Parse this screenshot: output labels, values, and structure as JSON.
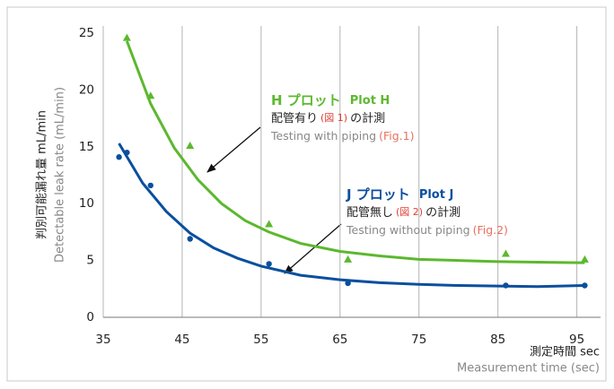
{
  "chart_data": {
    "type": "scatter",
    "y_label": "判別可能漏れ量 mL/min",
    "y_label_en": "Detectable leak rate (mL/min)",
    "x_label": "測定時間 sec",
    "x_label_en": "Measurement time (sec)",
    "xlim": [
      35,
      98
    ],
    "xticks": [
      35,
      45,
      55,
      65,
      75,
      85,
      95
    ],
    "ylim": [
      0,
      25
    ],
    "yticks": [
      0,
      5,
      10,
      15,
      20,
      25
    ],
    "grid": "x",
    "series": [
      {
        "marker": "triangle",
        "color": "#5cb82e",
        "x": [
          38,
          41,
          46,
          56,
          66,
          86,
          96
        ],
        "values": [
          24.6,
          19.5,
          15.1,
          8.2,
          5.1,
          5.6,
          5.1
        ]
      },
      {
        "marker": "circle",
        "color": "#0a4f9e",
        "x": [
          37,
          38,
          41,
          46,
          56,
          66,
          86,
          96
        ],
        "values": [
          14.1,
          14.5,
          11.6,
          6.9,
          4.7,
          3.0,
          2.8,
          2.8
        ]
      }
    ],
    "fits": [
      {
        "color": "#5cb82e",
        "x": [
          38,
          41,
          44,
          47,
          50,
          53,
          56,
          60,
          65,
          70,
          75,
          80,
          85,
          90,
          96
        ],
        "values": [
          24.3,
          18.8,
          14.9,
          12.1,
          10.0,
          8.5,
          7.5,
          6.5,
          5.8,
          5.4,
          5.1,
          5.0,
          4.9,
          4.85,
          4.8
        ]
      },
      {
        "color": "#0a4f9e",
        "x": [
          37,
          40,
          43,
          46,
          49,
          52,
          55,
          60,
          65,
          70,
          75,
          80,
          85,
          90,
          96
        ],
        "values": [
          15.3,
          11.8,
          9.3,
          7.4,
          6.1,
          5.2,
          4.5,
          3.7,
          3.3,
          3.05,
          2.9,
          2.8,
          2.75,
          2.7,
          2.8
        ]
      }
    ],
    "annotations": [
      {
        "lines": [
          [
            {
              "text": "H プロット",
              "color": "#5cb82e",
              "bold": true
            },
            {
              "text": "Plot H",
              "color": "#5cb82e",
              "bold": true
            }
          ],
          [
            {
              "text": "配管有り",
              "color": "#222"
            },
            {
              "text": "(図 1)",
              "color": "#e03c31"
            },
            {
              "text": "の計測",
              "color": "#222"
            }
          ],
          [
            {
              "text": "Testing with piping",
              "color": "#888"
            },
            {
              "text": "(Fig.1)",
              "color": "#e8715f"
            }
          ]
        ]
      },
      {
        "lines": [
          [
            {
              "text": "J プロット",
              "color": "#0a4f9e",
              "bold": true
            },
            {
              "text": "Plot J",
              "color": "#0a4f9e",
              "bold": true
            }
          ],
          [
            {
              "text": "配管無し",
              "color": "#222"
            },
            {
              "text": "(図 2)",
              "color": "#e03c31"
            },
            {
              "text": "の計測",
              "color": "#222"
            }
          ],
          [
            {
              "text": "Testing without piping",
              "color": "#888"
            },
            {
              "text": "(Fig.2)",
              "color": "#e8715f"
            }
          ]
        ]
      }
    ]
  }
}
